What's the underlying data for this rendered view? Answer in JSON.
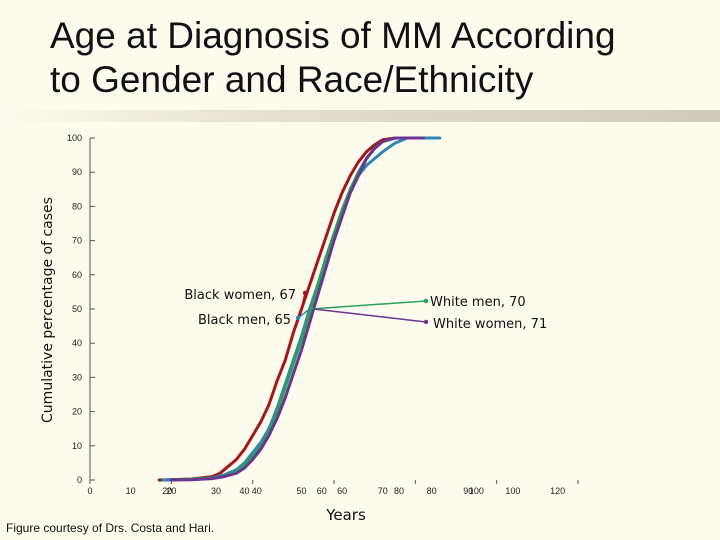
{
  "page": {
    "title_line1": "Age at Diagnosis of MM According",
    "title_line2": "to Gender and Race/Ethnicity",
    "caption": "Figure courtesy of Drs. Costa and Hari."
  },
  "chart_data": {
    "type": "line",
    "title": "Age at Diagnosis of MM According to Gender and Race/Ethnicity",
    "xlabel": "Years",
    "ylabel": "Cumulative percentage of cases",
    "xlim": [
      0,
      120
    ],
    "ylim": [
      0,
      100
    ],
    "y_ticks": [
      0,
      10,
      20,
      30,
      40,
      50,
      60,
      70,
      80,
      90,
      100
    ],
    "x_ticks": [
      {
        "value": 0,
        "label": "0"
      },
      {
        "value": 10,
        "label": "10"
      },
      {
        "value": 19,
        "label": "20"
      },
      {
        "value": 20,
        "label": "20"
      },
      {
        "value": 31,
        "label": "30"
      },
      {
        "value": 38,
        "label": "40"
      },
      {
        "value": 41,
        "label": "40"
      },
      {
        "value": 52,
        "label": "50"
      },
      {
        "value": 57,
        "label": "60"
      },
      {
        "value": 62,
        "label": "60"
      },
      {
        "value": 72,
        "label": "70"
      },
      {
        "value": 76,
        "label": "80"
      },
      {
        "value": 84,
        "label": "80"
      },
      {
        "value": 93,
        "label": "90"
      },
      {
        "value": 95,
        "label": "100"
      },
      {
        "value": 104,
        "label": "100"
      },
      {
        "value": 115,
        "label": "120"
      }
    ],
    "series": [
      {
        "name": "Black women",
        "color": "#a3161a",
        "points": [
          [
            17,
            0
          ],
          [
            25,
            0.3
          ],
          [
            30,
            1
          ],
          [
            32,
            2
          ],
          [
            34,
            4
          ],
          [
            36,
            6
          ],
          [
            38,
            9
          ],
          [
            40,
            13
          ],
          [
            42,
            17
          ],
          [
            44,
            22
          ],
          [
            46,
            29
          ],
          [
            48,
            35
          ],
          [
            50,
            43
          ],
          [
            52,
            50
          ],
          [
            54,
            57
          ],
          [
            56,
            64
          ],
          [
            58,
            71
          ],
          [
            60,
            78
          ],
          [
            62,
            84
          ],
          [
            64,
            89
          ],
          [
            66,
            93
          ],
          [
            68,
            96
          ],
          [
            70,
            98
          ],
          [
            72,
            99.5
          ],
          [
            75,
            100
          ],
          [
            82,
            100
          ]
        ]
      },
      {
        "name": "Black men",
        "color": "#2e86b8",
        "points": [
          [
            18,
            0
          ],
          [
            25,
            0.2
          ],
          [
            30,
            0.6
          ],
          [
            33,
            1.5
          ],
          [
            36,
            3
          ],
          [
            38,
            5
          ],
          [
            40,
            8
          ],
          [
            42,
            11
          ],
          [
            44,
            15
          ],
          [
            46,
            21
          ],
          [
            48,
            28
          ],
          [
            50,
            35
          ],
          [
            52,
            42
          ],
          [
            54,
            50
          ],
          [
            56,
            57
          ],
          [
            58,
            64
          ],
          [
            60,
            71
          ],
          [
            62,
            78
          ],
          [
            64,
            84
          ],
          [
            66,
            89
          ],
          [
            68,
            92
          ],
          [
            70,
            94
          ],
          [
            72,
            96
          ],
          [
            75,
            98.5
          ],
          [
            78,
            100
          ],
          [
            86,
            100
          ]
        ]
      },
      {
        "name": "White men",
        "color": "#2aa05a",
        "points": [
          [
            20,
            0
          ],
          [
            25,
            0.2
          ],
          [
            30,
            0.5
          ],
          [
            33,
            1.2
          ],
          [
            36,
            2.5
          ],
          [
            38,
            4.5
          ],
          [
            40,
            7
          ],
          [
            42,
            10
          ],
          [
            44,
            14
          ],
          [
            46,
            20
          ],
          [
            48,
            27
          ],
          [
            50,
            34
          ],
          [
            52,
            41
          ],
          [
            54,
            49
          ],
          [
            56,
            57
          ],
          [
            58,
            65
          ],
          [
            60,
            72
          ],
          [
            62,
            79
          ],
          [
            64,
            85
          ],
          [
            66,
            90
          ],
          [
            68,
            94
          ],
          [
            70,
            97
          ],
          [
            72,
            99
          ],
          [
            75,
            100
          ],
          [
            80,
            100
          ]
        ]
      },
      {
        "name": "White women",
        "color": "#6a3591",
        "points": [
          [
            20,
            0
          ],
          [
            25,
            0.1
          ],
          [
            30,
            0.4
          ],
          [
            33,
            1
          ],
          [
            36,
            2
          ],
          [
            38,
            3.5
          ],
          [
            40,
            6
          ],
          [
            42,
            9
          ],
          [
            44,
            13
          ],
          [
            46,
            18
          ],
          [
            48,
            24
          ],
          [
            50,
            31
          ],
          [
            52,
            38
          ],
          [
            54,
            46
          ],
          [
            56,
            54
          ],
          [
            58,
            62
          ],
          [
            60,
            70
          ],
          [
            62,
            77
          ],
          [
            64,
            84
          ],
          [
            66,
            89
          ],
          [
            68,
            94
          ],
          [
            70,
            97
          ],
          [
            72,
            99
          ],
          [
            75,
            100
          ],
          [
            82,
            100
          ]
        ]
      }
    ],
    "annotations": [
      {
        "text": "Black women, 67",
        "series": "Black women"
      },
      {
        "text": "Black men, 65",
        "series": "Black men"
      },
      {
        "text": "White men, 70",
        "series": "White men"
      },
      {
        "text": "White women, 71",
        "series": "White women"
      }
    ]
  }
}
